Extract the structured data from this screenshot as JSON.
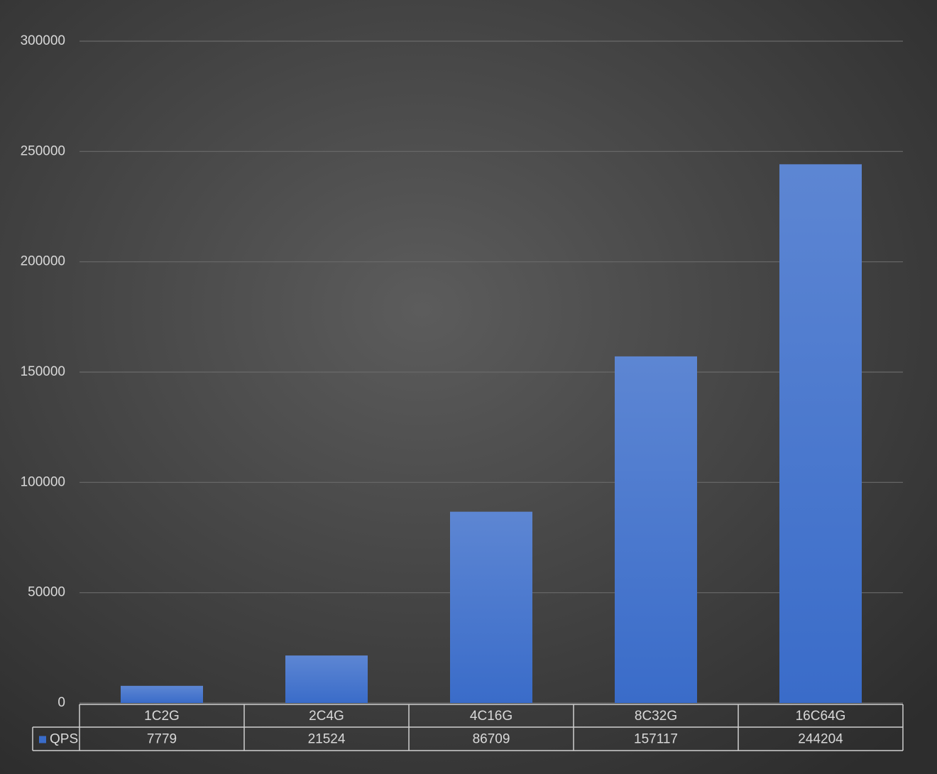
{
  "chart_data": {
    "type": "bar",
    "categories": [
      "1C2G",
      "2C4G",
      "4C16G",
      "8C32G",
      "16C64G"
    ],
    "series": [
      {
        "name": "QPS",
        "color": "#3a6cc9",
        "values": [
          7779,
          21524,
          86709,
          157117,
          244204
        ]
      }
    ],
    "ylim": [
      0,
      300000
    ],
    "yticks": [
      0,
      50000,
      100000,
      150000,
      200000,
      250000,
      300000
    ],
    "grid": true,
    "legend": "bottom"
  }
}
